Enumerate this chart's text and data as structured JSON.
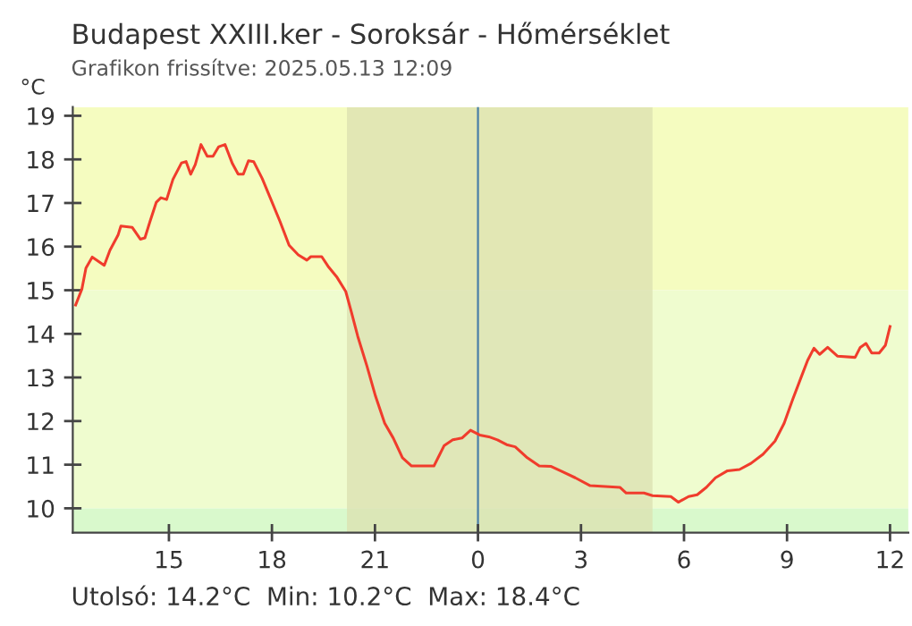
{
  "chart_data": {
    "type": "line",
    "title": "Budapest XXIII.ker - Soroksár - Hőmérséklet",
    "subtitle": "Grafikon frissítve: 2025.05.13 12:09",
    "ylabel": "°C",
    "annotations": [
      "Utolsó: 14.2°C  Min: 10.2°C  Max: 18.4°C"
    ],
    "series": [
      {
        "color": "#f03c2c",
        "x": [
          "2025-05-12T12:17",
          "2025-05-12T12:28",
          "2025-05-12T12:35",
          "2025-05-12T12:46",
          "2025-05-12T13:07",
          "2025-05-12T13:17",
          "2025-05-12T13:31",
          "2025-05-12T13:36",
          "2025-05-12T13:56",
          "2025-05-12T14:10",
          "2025-05-12T14:18",
          "2025-05-12T14:27",
          "2025-05-12T14:38",
          "2025-05-12T14:46",
          "2025-05-12T14:56",
          "2025-05-12T15:07",
          "2025-05-12T15:22",
          "2025-05-12T15:30",
          "2025-05-12T15:38",
          "2025-05-12T15:46",
          "2025-05-12T15:56",
          "2025-05-12T16:07",
          "2025-05-12T16:17",
          "2025-05-12T16:27",
          "2025-05-12T16:38",
          "2025-05-12T16:51",
          "2025-05-12T17:01",
          "2025-05-12T17:10",
          "2025-05-12T17:19",
          "2025-05-12T17:28",
          "2025-05-12T17:43",
          "2025-05-12T17:56",
          "2025-05-12T18:14",
          "2025-05-12T18:30",
          "2025-05-12T18:46",
          "2025-05-12T19:01",
          "2025-05-12T19:08",
          "2025-05-12T19:27",
          "2025-05-12T19:38",
          "2025-05-12T19:53",
          "2025-05-12T20:09",
          "2025-05-12T20:19",
          "2025-05-12T20:30",
          "2025-05-12T20:46",
          "2025-05-12T21:01",
          "2025-05-12T21:17",
          "2025-05-12T21:32",
          "2025-05-12T21:48",
          "2025-05-12T22:04",
          "2025-05-12T22:43",
          "2025-05-12T23:01",
          "2025-05-12T23:16",
          "2025-05-12T23:32",
          "2025-05-12T23:47",
          "2025-05-13T00:03",
          "2025-05-13T00:19",
          "2025-05-13T00:34",
          "2025-05-13T00:50",
          "2025-05-13T01:05",
          "2025-05-13T01:26",
          "2025-05-13T01:47",
          "2025-05-13T02:08",
          "2025-05-13T02:29",
          "2025-05-13T02:50",
          "2025-05-13T03:16",
          "2025-05-13T04:08",
          "2025-05-13T04:19",
          "2025-05-13T04:50",
          "2025-05-13T05:05",
          "2025-05-13T05:37",
          "2025-05-13T05:50",
          "2025-05-13T06:08",
          "2025-05-13T06:23",
          "2025-05-13T06:39",
          "2025-05-13T06:55",
          "2025-05-13T07:16",
          "2025-05-13T07:37",
          "2025-05-13T07:57",
          "2025-05-13T08:18",
          "2025-05-13T08:39",
          "2025-05-13T08:55",
          "2025-05-13T09:10",
          "2025-05-13T09:26",
          "2025-05-13T09:36",
          "2025-05-13T09:47",
          "2025-05-13T09:57",
          "2025-05-13T10:11",
          "2025-05-13T10:28",
          "2025-05-13T10:59",
          "2025-05-13T11:08",
          "2025-05-13T11:18",
          "2025-05-13T11:28",
          "2025-05-13T11:41",
          "2025-05-13T11:52",
          "2025-05-13T12:00"
        ],
        "values": [
          14.66,
          15.03,
          15.51,
          15.76,
          15.57,
          15.92,
          16.26,
          16.47,
          16.44,
          16.17,
          16.2,
          16.58,
          17.02,
          17.12,
          17.08,
          17.54,
          17.92,
          17.95,
          17.66,
          17.88,
          18.34,
          18.07,
          18.07,
          18.29,
          18.34,
          17.9,
          17.66,
          17.66,
          17.97,
          17.95,
          17.56,
          17.15,
          16.58,
          16.03,
          15.81,
          15.69,
          15.77,
          15.77,
          15.55,
          15.31,
          14.97,
          14.49,
          13.94,
          13.26,
          12.57,
          11.95,
          11.61,
          11.16,
          10.97,
          10.97,
          11.44,
          11.57,
          11.61,
          11.79,
          11.68,
          11.64,
          11.57,
          11.46,
          11.41,
          11.16,
          10.97,
          10.96,
          10.83,
          10.7,
          10.52,
          10.48,
          10.35,
          10.35,
          10.29,
          10.27,
          10.14,
          10.27,
          10.31,
          10.48,
          10.7,
          10.86,
          10.89,
          11.03,
          11.24,
          11.54,
          11.95,
          12.5,
          13.05,
          13.39,
          13.67,
          13.53,
          13.69,
          13.49,
          13.46,
          13.69,
          13.78,
          13.56,
          13.56,
          13.74,
          14.17
        ]
      }
    ],
    "xlim": [
      "2025-05-12T12:12",
      "2025-05-13T12:32"
    ],
    "xticks": [
      {
        "value": "2025-05-12T15:00",
        "label": "15"
      },
      {
        "value": "2025-05-12T18:00",
        "label": "18"
      },
      {
        "value": "2025-05-12T21:00",
        "label": "21"
      },
      {
        "value": "2025-05-13T00:00",
        "label": "0"
      },
      {
        "value": "2025-05-13T03:00",
        "label": "3"
      },
      {
        "value": "2025-05-13T06:00",
        "label": "6"
      },
      {
        "value": "2025-05-13T09:00",
        "label": "9"
      },
      {
        "value": "2025-05-13T12:00",
        "label": "12"
      }
    ],
    "ylim": [
      9.44,
      19.2
    ],
    "yticks": [
      10,
      11,
      12,
      13,
      14,
      15,
      16,
      17,
      18,
      19
    ],
    "bands": [
      {
        "axis": "y",
        "from": 15,
        "to": 19.2,
        "color": "#f5fcc0"
      },
      {
        "axis": "y",
        "from": 10,
        "to": 15,
        "color": "#effccf"
      },
      {
        "axis": "y",
        "from": 9.44,
        "to": 10,
        "color": "#d9f9cc"
      },
      {
        "axis": "x",
        "from": "2025-05-12T20:11",
        "to": "2025-05-13T05:05",
        "color": "#dbe0b0"
      }
    ],
    "ref_lines": [
      {
        "axis": "x",
        "value": "2025-05-13T00:00",
        "color": "#4a7fa8"
      }
    ],
    "grid": false,
    "legend": false,
    "marker": "none",
    "line_style": "solid"
  }
}
